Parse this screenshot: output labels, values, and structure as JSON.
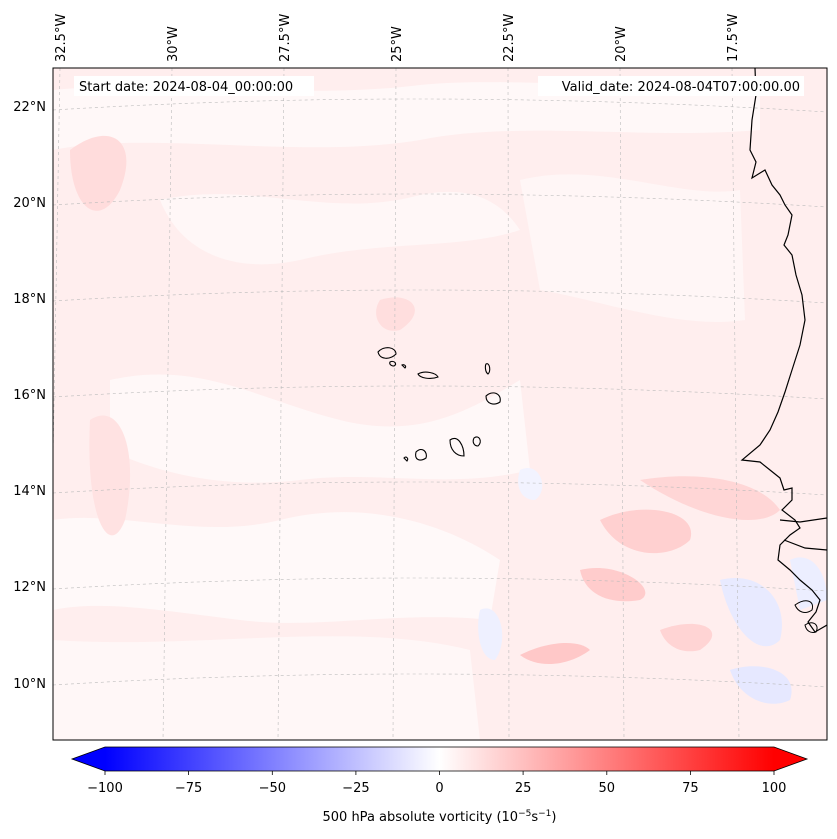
{
  "map": {
    "start_date": "Start date: 2024-08-04_00:00:00",
    "valid_date": "Valid_date: 2024-08-04T07:00:00.00",
    "lon_labels": [
      "32.5°W",
      "30°W",
      "27.5°W",
      "25°W",
      "22.5°W",
      "20°W",
      "17.5°W"
    ],
    "lat_labels": [
      "22°N",
      "20°N",
      "18°N",
      "16°N",
      "14°N",
      "12°N",
      "10°N"
    ],
    "colorbar": {
      "ticks": [
        "−100",
        "−75",
        "−50",
        "−25",
        "0",
        "25",
        "50",
        "75",
        "100"
      ],
      "label_main": "500 hPa absolute vorticity (10",
      "label_exp1": "−5",
      "label_mid": "s",
      "label_exp2": "−1",
      "label_end": ")",
      "min": -100,
      "max": 100,
      "min_color": "#0000ff",
      "zero_color": "#ffffff",
      "max_color": "#ff0000"
    }
  }
}
